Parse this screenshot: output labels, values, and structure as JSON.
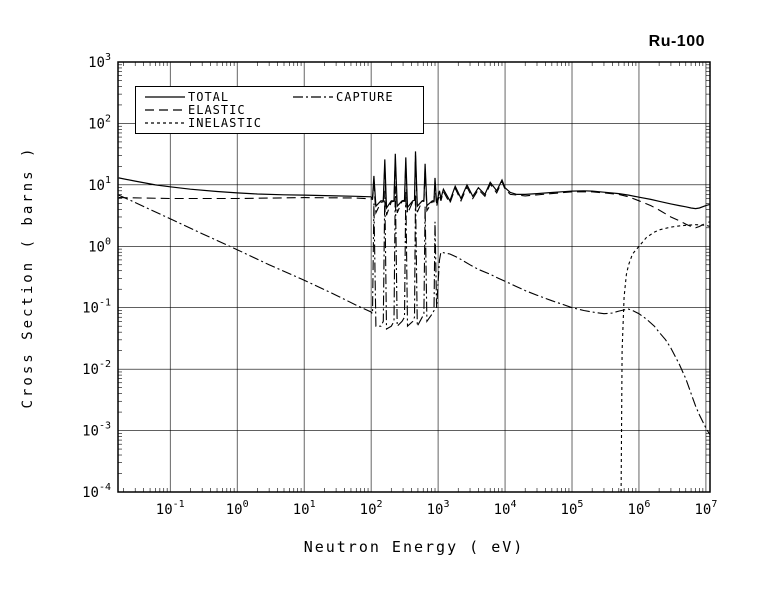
{
  "title": "Ru-100",
  "colors": {
    "foreground": "#000000",
    "background": "#ffffff"
  },
  "chart_data": {
    "type": "line",
    "title": "Ru-100",
    "xlabel": "Neutron Energy ( eV)",
    "ylabel": "Cross Section ( barns )",
    "xscale": "log",
    "yscale": "log",
    "xlim": [
      0.0166,
      11500000
    ],
    "ylim": [
      0.0001,
      1000
    ],
    "x_tick_exponents": [
      -1,
      0,
      1,
      2,
      3,
      4,
      5,
      6,
      7
    ],
    "y_tick_exponents": [
      -4,
      -3,
      -2,
      -1,
      0,
      1,
      2,
      3
    ],
    "grid": true,
    "legend_position": "top-left",
    "series": [
      {
        "name": "TOTAL",
        "line_style": "solid",
        "x": [
          0.017,
          0.03,
          0.06,
          0.1,
          0.2,
          0.5,
          1,
          2,
          5,
          10,
          30,
          60,
          100,
          105,
          110,
          118,
          140,
          152,
          160,
          170,
          200,
          220,
          230,
          245,
          290,
          315,
          330,
          350,
          420,
          445,
          460,
          490,
          580,
          615,
          640,
          680,
          820,
          870,
          900,
          950,
          1050,
          1100,
          1200,
          1500,
          1800,
          2200,
          2700,
          3300,
          4000,
          5000,
          6000,
          7500,
          9000,
          10000,
          12000,
          15000,
          20000,
          30000,
          50000,
          70000,
          100000,
          150000,
          200000,
          300000,
          500000,
          700000,
          1000000,
          1500000,
          2000000,
          3000000,
          4000000,
          5000000,
          6000000,
          7000000,
          8000000,
          10000000,
          11500000
        ],
        "y": [
          13,
          11.5,
          10,
          9.3,
          8.5,
          7.8,
          7.4,
          7.1,
          6.9,
          6.8,
          6.6,
          6.5,
          6.4,
          6.0,
          14,
          4.5,
          5.5,
          5.5,
          26,
          4.2,
          5.5,
          5.5,
          32,
          4.5,
          5.5,
          5.6,
          28,
          4.3,
          5.5,
          5.6,
          35,
          4.5,
          5.5,
          5.6,
          22,
          4.6,
          5.5,
          5.5,
          13,
          5.0,
          8,
          6,
          8.5,
          5.5,
          9.5,
          6,
          10,
          6.5,
          9,
          7,
          11,
          8,
          12,
          9,
          7.5,
          7,
          7,
          7.2,
          7.5,
          7.7,
          7.9,
          8.0,
          7.9,
          7.6,
          7.2,
          6.8,
          6.3,
          5.8,
          5.4,
          4.9,
          4.6,
          4.4,
          4.2,
          4.1,
          4.2,
          4.6,
          4.8
        ]
      },
      {
        "name": "ELASTIC",
        "line_style": "long-dash",
        "x": [
          0.017,
          0.1,
          1,
          10,
          60,
          100,
          105,
          110,
          118,
          140,
          152,
          160,
          170,
          200,
          220,
          230,
          245,
          290,
          315,
          330,
          350,
          420,
          445,
          460,
          490,
          580,
          615,
          640,
          680,
          820,
          870,
          900,
          950,
          1050,
          1100,
          1200,
          1500,
          1800,
          2200,
          2700,
          3300,
          4000,
          5000,
          6000,
          7500,
          9000,
          10000,
          12000,
          20000,
          50000,
          100000,
          200000,
          300000,
          500000,
          700000,
          1000000,
          1500000,
          2000000,
          3000000,
          4000000,
          5000000,
          6000000,
          7000000,
          8000000,
          10000000,
          11500000
        ],
        "y": [
          6.2,
          6.0,
          6.0,
          6.2,
          6.1,
          5.9,
          5.8,
          10,
          3.5,
          5.2,
          5.3,
          20,
          3.2,
          5.3,
          5.4,
          26,
          3.5,
          5.4,
          5.4,
          23,
          3.4,
          5.4,
          5.4,
          30,
          3.6,
          5.4,
          5.4,
          18,
          3.8,
          5.3,
          5.3,
          10,
          4.5,
          7,
          5.5,
          7.8,
          5.0,
          8.8,
          5.5,
          9.2,
          6.0,
          8.4,
          6.5,
          10.3,
          7.4,
          11.3,
          8.5,
          7.0,
          6.6,
          7.2,
          7.7,
          7.7,
          7.4,
          7.0,
          6.4,
          5.5,
          4.6,
          3.9,
          3.0,
          2.6,
          2.3,
          2.1,
          2.0,
          2.1,
          2.4,
          2.5
        ]
      },
      {
        "name": "INELASTIC",
        "line_style": "short-dash",
        "x": [
          540000,
          560000,
          600000,
          650000,
          700000,
          800000,
          1000000,
          1300000,
          1700000,
          2000000,
          3000000,
          4000000,
          5000000,
          7000000,
          10000000,
          11500000
        ],
        "y": [
          0.0001,
          0.02,
          0.15,
          0.35,
          0.5,
          0.75,
          1.0,
          1.4,
          1.7,
          1.85,
          2.05,
          2.15,
          2.2,
          2.25,
          2.2,
          2.1
        ]
      },
      {
        "name": "CAPTURE",
        "line_style": "dash-dot",
        "x": [
          0.017,
          0.0253,
          0.1,
          0.3,
          1,
          3,
          10,
          30,
          60,
          100,
          105,
          110,
          118,
          140,
          152,
          160,
          170,
          200,
          220,
          230,
          245,
          290,
          315,
          330,
          350,
          420,
          445,
          460,
          490,
          580,
          615,
          640,
          680,
          820,
          870,
          900,
          950,
          1050,
          1100,
          1500,
          2000,
          3000,
          4000,
          6000,
          8000,
          10000,
          15000,
          20000,
          30000,
          50000,
          70000,
          100000,
          150000,
          200000,
          300000,
          400000,
          500000,
          600000,
          700000,
          800000,
          1000000,
          1300000,
          1700000,
          2000000,
          2500000,
          3000000,
          4000000,
          5000000,
          6000000,
          7000000,
          8000000,
          10000000,
          11500000
        ],
        "y": [
          6.8,
          5.6,
          2.8,
          1.6,
          0.88,
          0.5,
          0.28,
          0.16,
          0.11,
          0.085,
          0.08,
          5,
          0.05,
          0.05,
          0.06,
          8,
          0.045,
          0.05,
          0.06,
          9.5,
          0.05,
          0.06,
          0.07,
          8,
          0.05,
          0.06,
          0.07,
          7,
          0.05,
          0.07,
          0.08,
          4.5,
          0.06,
          0.08,
          0.09,
          2.5,
          0.1,
          0.6,
          0.8,
          0.75,
          0.65,
          0.5,
          0.42,
          0.35,
          0.3,
          0.27,
          0.22,
          0.19,
          0.16,
          0.13,
          0.115,
          0.1,
          0.09,
          0.085,
          0.08,
          0.082,
          0.088,
          0.092,
          0.095,
          0.09,
          0.08,
          0.065,
          0.05,
          0.04,
          0.03,
          0.022,
          0.012,
          0.007,
          0.004,
          0.0025,
          0.0018,
          0.0011,
          0.00085
        ]
      }
    ]
  }
}
